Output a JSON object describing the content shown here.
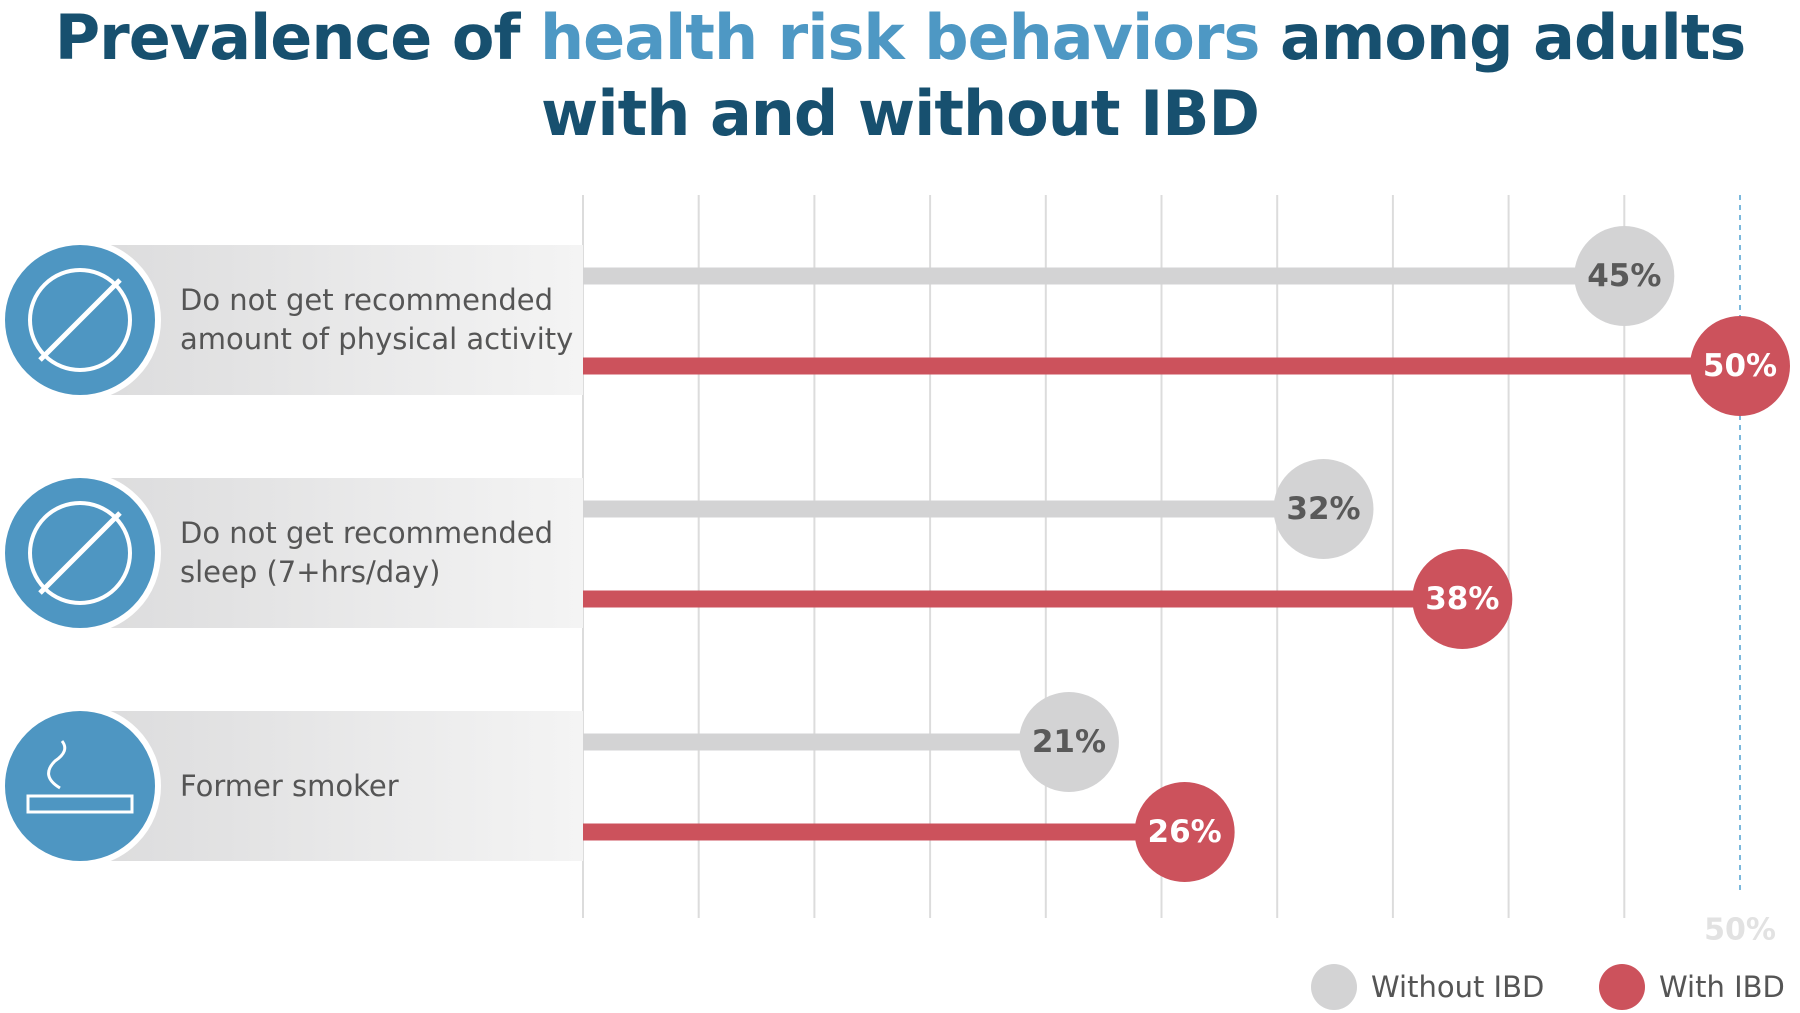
{
  "chart_data": {
    "type": "lollipop",
    "title": [
      "Prevalence of",
      "health risk behaviors",
      "among adults with and without IBD"
    ],
    "title_colors": [
      "#17506f",
      "#4e98c4",
      "#17506f"
    ],
    "categories": [
      "Do not get recommended amount of physical activity",
      "Do not get recommended sleep (7+hrs/day)",
      "Former smoker"
    ],
    "series": [
      {
        "name": "Without IBD",
        "color": "#d3d3d4",
        "values": [
          45,
          32,
          21
        ],
        "value_labels": [
          "45%",
          "32%",
          "21%"
        ]
      },
      {
        "name": "With IBD",
        "color": "#cc525c",
        "values": [
          50,
          38,
          26
        ],
        "value_labels": [
          "50%",
          "38%",
          "26%"
        ]
      }
    ],
    "xlim": [
      0,
      50
    ],
    "xticks": [
      {
        "value": 0,
        "label": null
      },
      {
        "value": 5,
        "label": null
      },
      {
        "value": 10,
        "label": null
      },
      {
        "value": 15,
        "label": null
      },
      {
        "value": 20,
        "label": null
      },
      {
        "value": 25,
        "label": null
      },
      {
        "value": 30,
        "label": null
      },
      {
        "value": 35,
        "label": null
      },
      {
        "value": 40,
        "label": null
      },
      {
        "value": 45,
        "label": null
      },
      {
        "value": 50,
        "label": "50%"
      }
    ],
    "grid": true,
    "legend": "bottom-right"
  }
}
